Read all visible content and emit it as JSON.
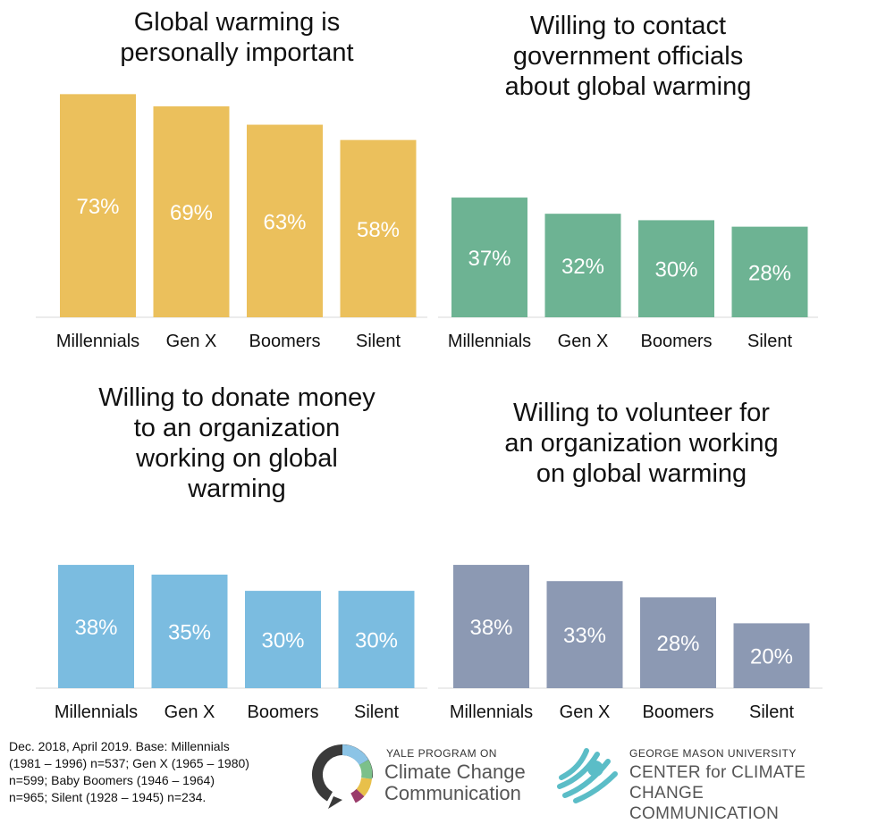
{
  "chart_data": [
    {
      "type": "bar",
      "title": [
        "Global warming is",
        "personally important"
      ],
      "categories": [
        "Millennials",
        "Gen X",
        "Boomers",
        "Silent"
      ],
      "values": [
        73,
        69,
        63,
        58
      ],
      "value_labels": [
        "73%",
        "69%",
        "63%",
        "58%"
      ],
      "color": "#ebc05c"
    },
    {
      "type": "bar",
      "title": [
        "Willing to contact",
        "government officials",
        "about global warming"
      ],
      "categories": [
        "Millennials",
        "Gen X",
        "Boomers",
        "Silent"
      ],
      "values": [
        37,
        32,
        30,
        28
      ],
      "value_labels": [
        "37%",
        "32%",
        "30%",
        "28%"
      ],
      "color": "#6db393"
    },
    {
      "type": "bar",
      "title": [
        "Willing to donate money",
        "to an organization",
        "working on global",
        "warming"
      ],
      "categories": [
        "Millennials",
        "Gen X",
        "Boomers",
        "Silent"
      ],
      "values": [
        38,
        35,
        30,
        30
      ],
      "value_labels": [
        "38%",
        "35%",
        "30%",
        "30%"
      ],
      "color": "#7bbce0"
    },
    {
      "type": "bar",
      "title": [
        "Willing to volunteer for",
        "an organization working",
        "on global warming"
      ],
      "categories": [
        "Millennials",
        "Gen X",
        "Boomers",
        "Silent"
      ],
      "values": [
        38,
        33,
        28,
        20
      ],
      "value_labels": [
        "38%",
        "33%",
        "28%",
        "20%"
      ],
      "color": "#8c99b3"
    }
  ],
  "footnote": [
    "Dec. 2018, April 2019. Base: Millennials",
    "(1981 – 1996) n=537; Gen X (1965 – 1980)",
    "n=599; Baby Boomers (1946 – 1964)",
    "n=965; Silent (1928 – 1945) n=234."
  ],
  "logos": {
    "yale_small": "YALE PROGRAM ON",
    "yale_big": [
      "Climate Change",
      "Communication"
    ],
    "gmu_small": "GEORGE MASON UNIVERSITY",
    "gmu_big": [
      "CENTER for CLIMATE CHANGE",
      "COMMUNICATION"
    ]
  }
}
